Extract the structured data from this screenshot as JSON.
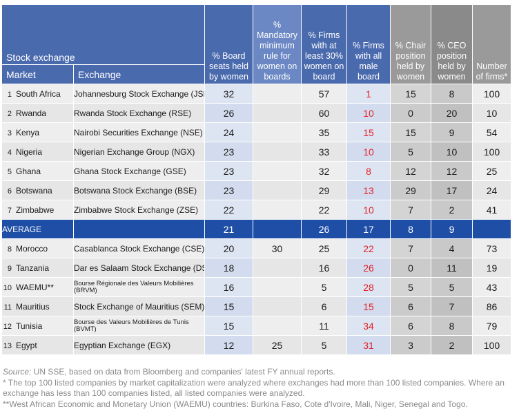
{
  "headers": {
    "stock_exchange": "Stock exchange",
    "market": "Market",
    "exchange": "Exchange",
    "board_women": "% Board seats held by women",
    "mandatory": "% Mandatory minimum rule for women on boards",
    "firms30": "% Firms with at least 30% women on board",
    "allmale": "% Firms with all male board",
    "chair": "% Chair position held by women",
    "ceo": "% CEO position held by women",
    "nfirms": "Number of firms*"
  },
  "rows_top": [
    {
      "idx": "1",
      "market": "South Africa",
      "exchange": "Johannesburg Stock Exchange (JSE)",
      "board": "32",
      "mandatory": "",
      "firms30": "57",
      "allmale": "1",
      "chair": "15",
      "ceo": "8",
      "nfirms": "100"
    },
    {
      "idx": "2",
      "market": "Rwanda",
      "exchange": "Rwanda Stock Exchange (RSE)",
      "board": "26",
      "mandatory": "",
      "firms30": "60",
      "allmale": "10",
      "chair": "0",
      "ceo": "20",
      "nfirms": "10"
    },
    {
      "idx": "3",
      "market": "Kenya",
      "exchange": "Nairobi Securities Exchange (NSE)",
      "board": "24",
      "mandatory": "",
      "firms30": "35",
      "allmale": "15",
      "chair": "15",
      "ceo": "9",
      "nfirms": "54"
    },
    {
      "idx": "4",
      "market": "Nigeria",
      "exchange": "Nigerian Exchange Group (NGX)",
      "board": "23",
      "mandatory": "",
      "firms30": "33",
      "allmale": "10",
      "chair": "5",
      "ceo": "10",
      "nfirms": "100"
    },
    {
      "idx": "5",
      "market": "Ghana",
      "exchange": "Ghana Stock Exchange (GSE)",
      "board": "23",
      "mandatory": "",
      "firms30": "32",
      "allmale": "8",
      "chair": "12",
      "ceo": "12",
      "nfirms": "25"
    },
    {
      "idx": "6",
      "market": "Botswana",
      "exchange": "Botswana Stock Exchange (BSE)",
      "board": "23",
      "mandatory": "",
      "firms30": "29",
      "allmale": "13",
      "chair": "29",
      "ceo": "17",
      "nfirms": "24"
    },
    {
      "idx": "7",
      "market": "Zimbabwe",
      "exchange": "Zimbabwe Stock Exchange (ZSE)",
      "board": "22",
      "mandatory": "",
      "firms30": "22",
      "allmale": "10",
      "chair": "7",
      "ceo": "2",
      "nfirms": "41"
    }
  ],
  "average": {
    "label": "AVERAGE",
    "board": "21",
    "firms30": "26",
    "allmale": "17",
    "chair": "8",
    "ceo": "9"
  },
  "rows_bottom": [
    {
      "idx": "8",
      "market": "Morocco",
      "exchange": "Casablanca Stock Exchange (CSE)",
      "board": "20",
      "mandatory": "30",
      "firms30": "25",
      "allmale": "22",
      "chair": "7",
      "ceo": "4",
      "nfirms": "73",
      "small": false
    },
    {
      "idx": "9",
      "market": "Tanzania",
      "exchange": "Dar es Salaam Stock Exchange (DSE)",
      "board": "18",
      "mandatory": "",
      "firms30": "16",
      "allmale": "26",
      "chair": "0",
      "ceo": "11",
      "nfirms": "19",
      "small": false
    },
    {
      "idx": "10",
      "market": "WAEMU**",
      "exchange": "Bourse Régionale des Valeurs Mobilières (BRVM)",
      "board": "16",
      "mandatory": "",
      "firms30": "5",
      "allmale": "28",
      "chair": "5",
      "ceo": "5",
      "nfirms": "43",
      "small": true
    },
    {
      "idx": "11",
      "market": "Mauritius",
      "exchange": "Stock Exchange of Mauritius (SEM)",
      "board": "15",
      "mandatory": "",
      "firms30": "6",
      "allmale": "15",
      "chair": "6",
      "ceo": "7",
      "nfirms": "86",
      "small": false
    },
    {
      "idx": "12",
      "market": "Tunisia",
      "exchange": "Bourse des Valeurs Mobilières de Tunis (BVMT)",
      "board": "15",
      "mandatory": "",
      "firms30": "11",
      "allmale": "34",
      "chair": "6",
      "ceo": "8",
      "nfirms": "79",
      "small": true
    },
    {
      "idx": "13",
      "market": "Egypt",
      "exchange": "Egyptian Exchange (EGX)",
      "board": "12",
      "mandatory": "25",
      "firms30": "5",
      "allmale": "31",
      "chair": "3",
      "ceo": "2",
      "nfirms": "100",
      "small": false
    }
  ],
  "notes": {
    "source_label": "Source:",
    "source_text": " UN SSE, based on data from Bloomberg and companies' latest FY annual reports.",
    "note1": "* The top 100 listed companies by market capitalization were analyzed where exchanges had more than 100 listed companies. Where an exchange has less than 100 companies listed, all listed companies were analyzed.",
    "note2": "**West African Economic and Monetary Union (WAEMU) countries: Burkina Faso, Cote d'Ivoire, Mali, Niger, Senegal and Togo."
  },
  "colors": {
    "header_blue": "#4a6aae",
    "average_blue": "#1f4ea6",
    "all_male_red": "#e2222a"
  }
}
